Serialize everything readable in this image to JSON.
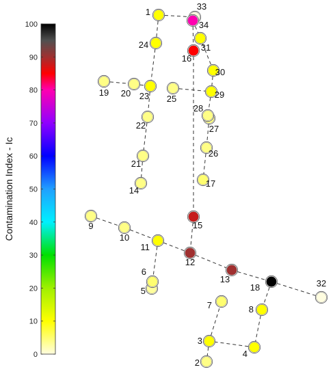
{
  "colorbar": {
    "title": "Contamination Index - Ic",
    "min": 0,
    "max": 100,
    "ticks": [
      "0",
      "10",
      "20",
      "30",
      "40",
      "50",
      "60",
      "70",
      "80",
      "90",
      "100"
    ],
    "stops": [
      {
        "v": 0,
        "c": "#fffde0"
      },
      {
        "v": 10,
        "c": "#ffff00"
      },
      {
        "v": 20,
        "c": "#a0f000"
      },
      {
        "v": 30,
        "c": "#00e000"
      },
      {
        "v": 40,
        "c": "#00f0ff"
      },
      {
        "v": 50,
        "c": "#20a0ff"
      },
      {
        "v": 60,
        "c": "#0000ff"
      },
      {
        "v": 70,
        "c": "#9000ff"
      },
      {
        "v": 80,
        "c": "#ff00b0"
      },
      {
        "v": 85,
        "c": "#ff0000"
      },
      {
        "v": 90,
        "c": "#a03030"
      },
      {
        "v": 95,
        "c": "#505050"
      },
      {
        "v": 100,
        "c": "#000000"
      }
    ]
  },
  "nodes": [
    {
      "id": "1",
      "label": "1",
      "ic": 10
    },
    {
      "id": "2",
      "label": "2",
      "ic": 4
    },
    {
      "id": "3",
      "label": "3",
      "ic": 10
    },
    {
      "id": "4",
      "label": "4",
      "ic": 10
    },
    {
      "id": "5",
      "label": "5",
      "ic": 3
    },
    {
      "id": "6",
      "label": "6",
      "ic": 5
    },
    {
      "id": "7",
      "label": "7",
      "ic": 5
    },
    {
      "id": "8",
      "label": "8",
      "ic": 10
    },
    {
      "id": "9",
      "label": "9",
      "ic": 4
    },
    {
      "id": "10",
      "label": "10",
      "ic": 4
    },
    {
      "id": "11",
      "label": "11",
      "ic": 10
    },
    {
      "id": "12",
      "label": "12",
      "ic": 90
    },
    {
      "id": "13",
      "label": "13",
      "ic": 90
    },
    {
      "id": "14",
      "label": "14",
      "ic": 4
    },
    {
      "id": "15",
      "label": "15",
      "ic": 88
    },
    {
      "id": "16",
      "label": "16",
      "ic": 85
    },
    {
      "id": "17",
      "label": "17",
      "ic": 5
    },
    {
      "id": "18",
      "label": "18",
      "ic": 100
    },
    {
      "id": "19",
      "label": "19",
      "ic": 4
    },
    {
      "id": "20",
      "label": "20",
      "ic": 4
    },
    {
      "id": "21",
      "label": "21",
      "ic": 4
    },
    {
      "id": "22",
      "label": "22",
      "ic": 4
    },
    {
      "id": "23",
      "label": "23",
      "ic": 10
    },
    {
      "id": "24",
      "label": "24",
      "ic": 10
    },
    {
      "id": "25",
      "label": "25",
      "ic": 4
    },
    {
      "id": "26",
      "label": "26",
      "ic": 4
    },
    {
      "id": "27",
      "label": "27",
      "ic": 4
    },
    {
      "id": "28",
      "label": "28",
      "ic": 4
    },
    {
      "id": "29",
      "label": "29",
      "ic": 10
    },
    {
      "id": "30",
      "label": "30",
      "ic": 10
    },
    {
      "id": "31",
      "label": "31",
      "ic": 10
    },
    {
      "id": "32",
      "label": "32",
      "ic": 0
    },
    {
      "id": "33",
      "label": "33",
      "ic": 0
    },
    {
      "id": "34",
      "label": "34",
      "ic": 80
    }
  ],
  "edges": [
    [
      "1",
      "33"
    ],
    [
      "1",
      "24"
    ],
    [
      "24",
      "23"
    ],
    [
      "19",
      "20"
    ],
    [
      "20",
      "23"
    ],
    [
      "23",
      "22"
    ],
    [
      "22",
      "21"
    ],
    [
      "21",
      "14"
    ],
    [
      "33",
      "34"
    ],
    [
      "34",
      "31"
    ],
    [
      "31",
      "30"
    ],
    [
      "30",
      "29"
    ],
    [
      "25",
      "29"
    ],
    [
      "29",
      "28"
    ],
    [
      "28",
      "27"
    ],
    [
      "27",
      "26"
    ],
    [
      "26",
      "17"
    ],
    [
      "34",
      "16"
    ],
    [
      "16",
      "15"
    ],
    [
      "15",
      "12"
    ],
    [
      "9",
      "10"
    ],
    [
      "10",
      "11"
    ],
    [
      "11",
      "12"
    ],
    [
      "12",
      "13"
    ],
    [
      "13",
      "18"
    ],
    [
      "18",
      "32"
    ],
    [
      "11",
      "6"
    ],
    [
      "6",
      "5"
    ],
    [
      "18",
      "8"
    ],
    [
      "8",
      "4"
    ],
    [
      "4",
      "3"
    ],
    [
      "3",
      "7"
    ],
    [
      "3",
      "2"
    ]
  ]
}
